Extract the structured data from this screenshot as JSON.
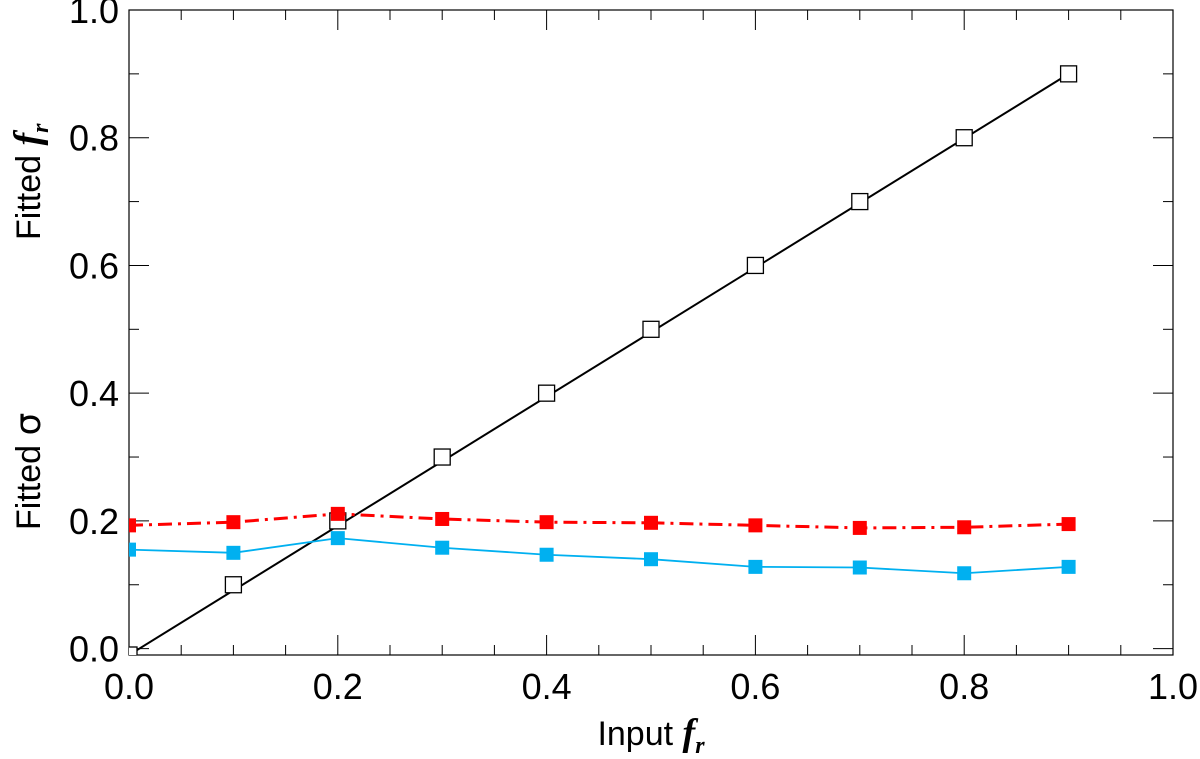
{
  "chart_data": {
    "type": "line",
    "title": "",
    "xlabel": "Input",
    "xlabel_symbol": "f",
    "xlabel_subscript": "r",
    "ylabel_top_text": "Fitted",
    "ylabel_top_symbol": "f",
    "ylabel_top_subscript": "r",
    "ylabel_bottom_text": "Fitted",
    "ylabel_bottom_symbol": "σ",
    "xlim": [
      0.0,
      1.0
    ],
    "ylim": [
      -0.01,
      1.0
    ],
    "xticks": [
      0.0,
      0.2,
      0.4,
      0.6,
      0.8,
      1.0
    ],
    "xtick_labels": [
      "0.0",
      "0.2",
      "0.4",
      "0.6",
      "0.8",
      "1.0"
    ],
    "yticks": [
      0.0,
      0.2,
      0.4,
      0.6,
      0.8,
      1.0
    ],
    "ytick_labels": [
      "0.0",
      "0.2",
      "0.4",
      "0.6",
      "0.8",
      "1.0"
    ],
    "x_minor_step": 0.05,
    "y_minor_step": 0.1,
    "grid": false,
    "series": [
      {
        "name": "Fitted fr",
        "color": "#000000",
        "line": "solid",
        "marker": "open-square",
        "x": [
          0.0,
          0.1,
          0.2,
          0.3,
          0.4,
          0.5,
          0.6,
          0.7,
          0.8,
          0.9
        ],
        "values": [
          -0.01,
          0.1,
          0.2,
          0.3,
          0.4,
          0.5,
          0.6,
          0.7,
          0.8,
          0.9
        ]
      },
      {
        "name": "Fitted sigma (red)",
        "color": "#ff0000",
        "line": "dash-dot",
        "marker": "filled-square",
        "x": [
          0.0,
          0.1,
          0.2,
          0.3,
          0.4,
          0.5,
          0.6,
          0.7,
          0.8,
          0.9
        ],
        "values": [
          0.193,
          0.198,
          0.211,
          0.203,
          0.198,
          0.197,
          0.193,
          0.189,
          0.19,
          0.195
        ]
      },
      {
        "name": "Fitted sigma (blue)",
        "color": "#00b0f0",
        "line": "solid",
        "marker": "filled-square",
        "x": [
          0.0,
          0.1,
          0.2,
          0.3,
          0.4,
          0.5,
          0.6,
          0.7,
          0.8,
          0.9
        ],
        "values": [
          0.155,
          0.15,
          0.173,
          0.158,
          0.147,
          0.14,
          0.128,
          0.127,
          0.118,
          0.128
        ]
      }
    ],
    "fit_line": {
      "color": "#000000",
      "x": [
        0.0,
        0.9
      ],
      "values": [
        -0.01,
        0.9
      ]
    }
  }
}
